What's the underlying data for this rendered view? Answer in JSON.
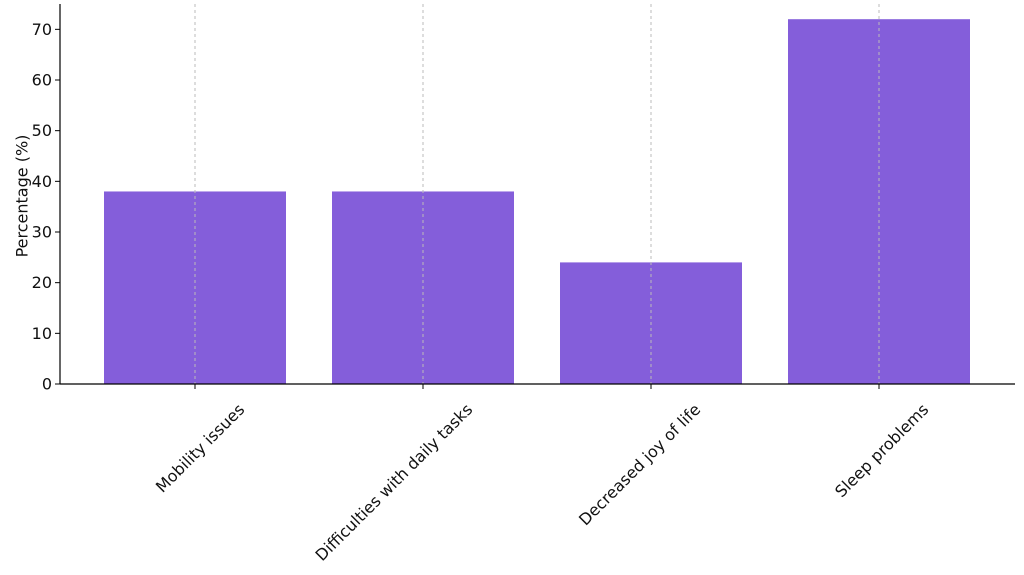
{
  "chart_data": {
    "type": "bar",
    "categories": [
      "Mobility issues",
      "Difficulties with daily tasks",
      "Decreased joy of life",
      "Sleep problems"
    ],
    "values": [
      38,
      38,
      24,
      72
    ],
    "title": "",
    "xlabel": "",
    "ylabel": "Percentage (%)",
    "ylim": [
      0,
      75
    ],
    "yticks": [
      0,
      10,
      20,
      30,
      40,
      50,
      60,
      70
    ],
    "grid": "vertical dashed at categories",
    "legend": "none",
    "bar_color": "#845EDA",
    "grid_color": "#BBBBBB",
    "axis_color": "#000000"
  }
}
